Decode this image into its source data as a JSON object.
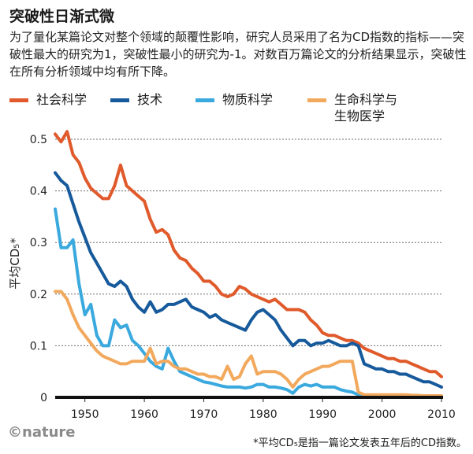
{
  "title": "突破性日渐式微",
  "subtitle": "为了量化某篇论文对整个领域的颠覆性影响，研究人员采用了名为CD指数的指标——突破性最大的研究为1，突破性最小的研究为-1。对数百万篇论文的分析结果显示，突破性在所有分析领域中均有所下降。",
  "footnote": "*平均CD₅是指一篇论文发表五年后的CD指数。",
  "logo": "©nature",
  "colors": {
    "social": "#e05a2b",
    "tech": "#165a9c",
    "physical": "#3aa9de",
    "life": "#f2a95d"
  },
  "chart_data": {
    "type": "line",
    "title": "突破性日渐式微",
    "ylabel": "平均CD₅*",
    "xlabel": "",
    "xlim": [
      1945,
      2010
    ],
    "ylim": [
      0,
      0.5
    ],
    "xticks": [
      "1950",
      "1960",
      "1970",
      "1980",
      "1990",
      "2000",
      "2010"
    ],
    "yticks": [
      "0",
      "0.1",
      "0.2",
      "0.3",
      "0.4",
      "0.5"
    ],
    "series": [
      {
        "key": "social",
        "name": "社会科学",
        "color": "#e05a2b",
        "x": [
          1945,
          1946,
          1947,
          1948,
          1949,
          1950,
          1951,
          1952,
          1953,
          1954,
          1955,
          1956,
          1957,
          1958,
          1959,
          1960,
          1961,
          1962,
          1963,
          1964,
          1965,
          1966,
          1967,
          1968,
          1969,
          1970,
          1971,
          1972,
          1973,
          1974,
          1975,
          1976,
          1977,
          1978,
          1979,
          1980,
          1981,
          1982,
          1983,
          1984,
          1985,
          1986,
          1987,
          1988,
          1989,
          1990,
          1991,
          1992,
          1993,
          1994,
          1995,
          1996,
          1997,
          1998,
          1999,
          2000,
          2001,
          2002,
          2003,
          2004,
          2005,
          2006,
          2007,
          2008,
          2009,
          2010
        ],
        "values": [
          0.51,
          0.495,
          0.515,
          0.47,
          0.455,
          0.425,
          0.405,
          0.395,
          0.385,
          0.385,
          0.41,
          0.45,
          0.41,
          0.4,
          0.39,
          0.38,
          0.345,
          0.32,
          0.325,
          0.315,
          0.285,
          0.27,
          0.265,
          0.25,
          0.24,
          0.225,
          0.225,
          0.215,
          0.2,
          0.195,
          0.2,
          0.215,
          0.21,
          0.2,
          0.195,
          0.19,
          0.185,
          0.19,
          0.18,
          0.17,
          0.17,
          0.17,
          0.165,
          0.15,
          0.14,
          0.125,
          0.12,
          0.12,
          0.115,
          0.11,
          0.11,
          0.105,
          0.095,
          0.09,
          0.085,
          0.08,
          0.075,
          0.075,
          0.07,
          0.07,
          0.065,
          0.06,
          0.055,
          0.05,
          0.05,
          0.04
        ]
      },
      {
        "key": "tech",
        "name": "技术",
        "color": "#165a9c",
        "x": [
          1945,
          1946,
          1947,
          1948,
          1949,
          1950,
          1951,
          1952,
          1953,
          1954,
          1955,
          1956,
          1957,
          1958,
          1959,
          1960,
          1961,
          1962,
          1963,
          1964,
          1965,
          1966,
          1967,
          1968,
          1969,
          1970,
          1971,
          1972,
          1973,
          1974,
          1975,
          1976,
          1977,
          1978,
          1979,
          1980,
          1981,
          1982,
          1983,
          1984,
          1985,
          1986,
          1987,
          1988,
          1989,
          1990,
          1991,
          1992,
          1993,
          1994,
          1995,
          1996,
          1997,
          1998,
          1999,
          2000,
          2001,
          2002,
          2003,
          2004,
          2005,
          2006,
          2007,
          2008,
          2009,
          2010
        ],
        "values": [
          0.435,
          0.42,
          0.41,
          0.375,
          0.34,
          0.31,
          0.28,
          0.26,
          0.24,
          0.22,
          0.215,
          0.225,
          0.215,
          0.19,
          0.175,
          0.165,
          0.185,
          0.165,
          0.17,
          0.18,
          0.18,
          0.185,
          0.19,
          0.175,
          0.17,
          0.165,
          0.155,
          0.16,
          0.15,
          0.145,
          0.14,
          0.135,
          0.13,
          0.15,
          0.165,
          0.17,
          0.16,
          0.15,
          0.13,
          0.115,
          0.1,
          0.11,
          0.11,
          0.1,
          0.105,
          0.105,
          0.11,
          0.105,
          0.1,
          0.1,
          0.105,
          0.1,
          0.065,
          0.06,
          0.055,
          0.055,
          0.05,
          0.05,
          0.045,
          0.045,
          0.04,
          0.035,
          0.03,
          0.03,
          0.025,
          0.02
        ]
      },
      {
        "key": "physical",
        "name": "物质科学",
        "color": "#3aa9de",
        "x": [
          1945,
          1946,
          1947,
          1948,
          1949,
          1950,
          1951,
          1952,
          1953,
          1954,
          1955,
          1956,
          1957,
          1958,
          1959,
          1960,
          1961,
          1962,
          1963,
          1964,
          1965,
          1966,
          1967,
          1968,
          1969,
          1970,
          1971,
          1972,
          1973,
          1974,
          1975,
          1976,
          1977,
          1978,
          1979,
          1980,
          1981,
          1982,
          1983,
          1984,
          1985,
          1986,
          1987,
          1988,
          1989,
          1990,
          1991,
          1992,
          1993,
          1994,
          1995,
          1996,
          1997,
          1998,
          1999,
          2000,
          2001,
          2002,
          2003,
          2004,
          2005,
          2006,
          2007,
          2008,
          2009,
          2010
        ],
        "values": [
          0.365,
          0.29,
          0.29,
          0.305,
          0.22,
          0.16,
          0.18,
          0.12,
          0.1,
          0.1,
          0.15,
          0.135,
          0.14,
          0.11,
          0.1,
          0.085,
          0.07,
          0.06,
          0.055,
          0.095,
          0.07,
          0.05,
          0.045,
          0.04,
          0.035,
          0.03,
          0.028,
          0.025,
          0.022,
          0.02,
          0.02,
          0.02,
          0.018,
          0.02,
          0.025,
          0.025,
          0.02,
          0.02,
          0.018,
          0.015,
          0.008,
          0.02,
          0.025,
          0.022,
          0.025,
          0.02,
          0.02,
          0.02,
          0.015,
          0.012,
          0.01,
          0.005,
          0.003,
          0.002,
          0.002,
          0.001,
          0.001,
          0.001,
          0.0,
          0.0,
          0.0,
          0.0,
          0.0,
          0.0,
          0.0,
          0.0
        ]
      },
      {
        "key": "life",
        "name": "生命科学与\n生物医学",
        "color": "#f2a95d",
        "x": [
          1945,
          1946,
          1947,
          1948,
          1949,
          1950,
          1951,
          1952,
          1953,
          1954,
          1955,
          1956,
          1957,
          1958,
          1959,
          1960,
          1961,
          1962,
          1963,
          1964,
          1965,
          1966,
          1967,
          1968,
          1969,
          1970,
          1971,
          1972,
          1973,
          1974,
          1975,
          1976,
          1977,
          1978,
          1979,
          1980,
          1981,
          1982,
          1983,
          1984,
          1985,
          1986,
          1987,
          1988,
          1989,
          1990,
          1991,
          1992,
          1993,
          1994,
          1995,
          1996,
          1997,
          1998,
          1999,
          2000,
          2001,
          2002,
          2003,
          2004,
          2005,
          2006,
          2007,
          2008,
          2009,
          2010
        ],
        "values": [
          0.205,
          0.205,
          0.19,
          0.16,
          0.135,
          0.12,
          0.105,
          0.09,
          0.08,
          0.075,
          0.07,
          0.065,
          0.065,
          0.07,
          0.07,
          0.07,
          0.095,
          0.065,
          0.07,
          0.07,
          0.06,
          0.055,
          0.055,
          0.05,
          0.045,
          0.045,
          0.04,
          0.04,
          0.035,
          0.06,
          0.035,
          0.04,
          0.065,
          0.08,
          0.045,
          0.05,
          0.05,
          0.05,
          0.045,
          0.035,
          0.02,
          0.035,
          0.045,
          0.05,
          0.055,
          0.06,
          0.06,
          0.065,
          0.07,
          0.07,
          0.07,
          0.01,
          0.005,
          0.005,
          0.005,
          0.005,
          0.005,
          0.005,
          0.005,
          0.005,
          0.004,
          0.004,
          0.003,
          0.003,
          0.003,
          0.003
        ]
      }
    ]
  }
}
